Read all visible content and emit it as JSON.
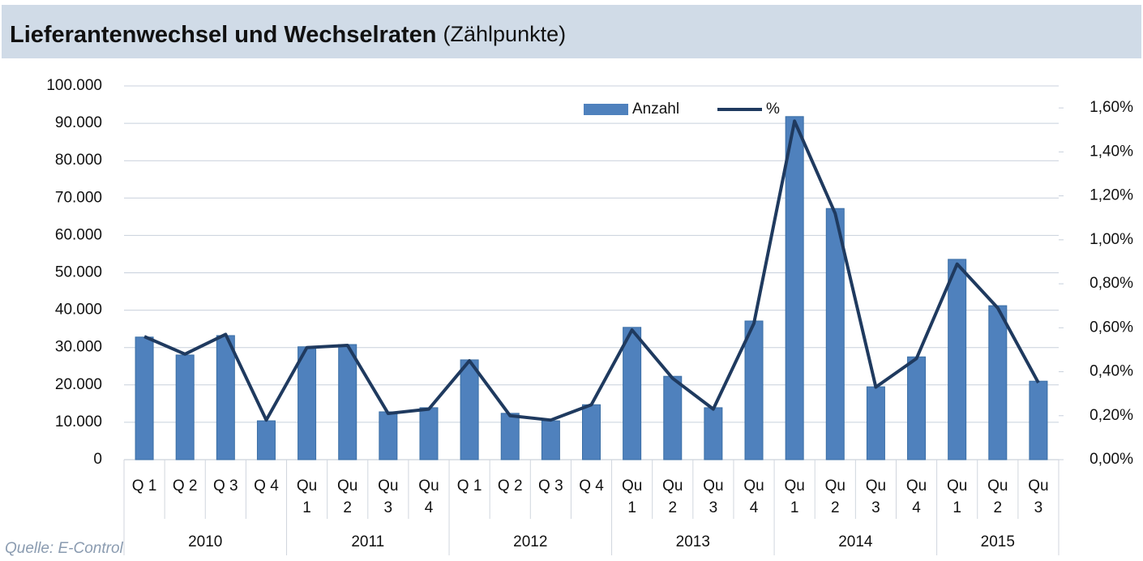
{
  "chart_data": {
    "type": "bar",
    "title": "Lieferantenwechsel und Wechselraten",
    "subtitle": "(Zählpunkte)",
    "source": "Quelle: E-Control",
    "groups": [
      {
        "label": "2010",
        "categories": [
          "Q 1",
          "Q 2",
          "Q 3",
          "Q 4"
        ]
      },
      {
        "label": "2011",
        "categories": [
          "Qu 1",
          "Qu 2",
          "Qu 3",
          "Qu 4"
        ]
      },
      {
        "label": "2012",
        "categories": [
          "Q 1",
          "Q 2",
          "Q 3",
          "Q 4"
        ]
      },
      {
        "label": "2013",
        "categories": [
          "Qu 1",
          "Qu 2",
          "Qu 3",
          "Qu 4"
        ]
      },
      {
        "label": "2014",
        "categories": [
          "Qu 1",
          "Qu 2",
          "Qu 3",
          "Qu 4"
        ]
      },
      {
        "label": "2015",
        "categories": [
          "Qu 1",
          "Qu 2",
          "Qu 3"
        ]
      }
    ],
    "series": [
      {
        "name": "Anzahl",
        "type": "bar",
        "color": "#4f81bd",
        "values": [
          32800,
          28000,
          33200,
          10400,
          30200,
          30800,
          12800,
          13900,
          26700,
          12400,
          10400,
          14700,
          35400,
          22300,
          13900,
          37100,
          91800,
          67200,
          19500,
          27500,
          53600,
          41200,
          21000
        ]
      },
      {
        "name": "%",
        "type": "line",
        "axis": "y2",
        "color": "#1f3a5f",
        "values": [
          0.56,
          0.48,
          0.57,
          0.18,
          0.51,
          0.52,
          0.21,
          0.23,
          0.45,
          0.2,
          0.18,
          0.25,
          0.59,
          0.37,
          0.23,
          0.62,
          1.54,
          1.12,
          0.33,
          0.46,
          0.89,
          0.69,
          0.35
        ]
      }
    ],
    "ylim": [
      0,
      100000
    ],
    "yticks": [
      0,
      {
        "value": 10000,
        "label": "10.000"
      },
      {
        "value": 20000,
        "label": "20.000"
      },
      {
        "value": 30000,
        "label": "30.000"
      },
      {
        "value": 40000,
        "label": "40.000"
      },
      {
        "value": 50000,
        "label": "50.000"
      },
      {
        "value": 60000,
        "label": "60.000"
      },
      {
        "value": 70000,
        "label": "70.000"
      },
      {
        "value": 80000,
        "label": "80.000"
      },
      {
        "value": 90000,
        "label": "90.000"
      },
      {
        "value": 100000,
        "label": "100.000"
      }
    ],
    "y2lim": [
      0,
      1.7
    ],
    "y2ticks": [
      {
        "value": 0,
        "label": "0,00%"
      },
      {
        "value": 0.2,
        "label": "0,20%"
      },
      {
        "value": 0.4,
        "label": "0,40%"
      },
      {
        "value": 0.6,
        "label": "0,60%"
      },
      {
        "value": 0.8,
        "label": "0,80%"
      },
      {
        "value": 1.0,
        "label": "1,00%"
      },
      {
        "value": 1.2,
        "label": "1,20%"
      },
      {
        "value": 1.4,
        "label": "1,40%"
      },
      {
        "value": 1.6,
        "label": "1,60%"
      }
    ],
    "grid": true,
    "legend": "top"
  }
}
